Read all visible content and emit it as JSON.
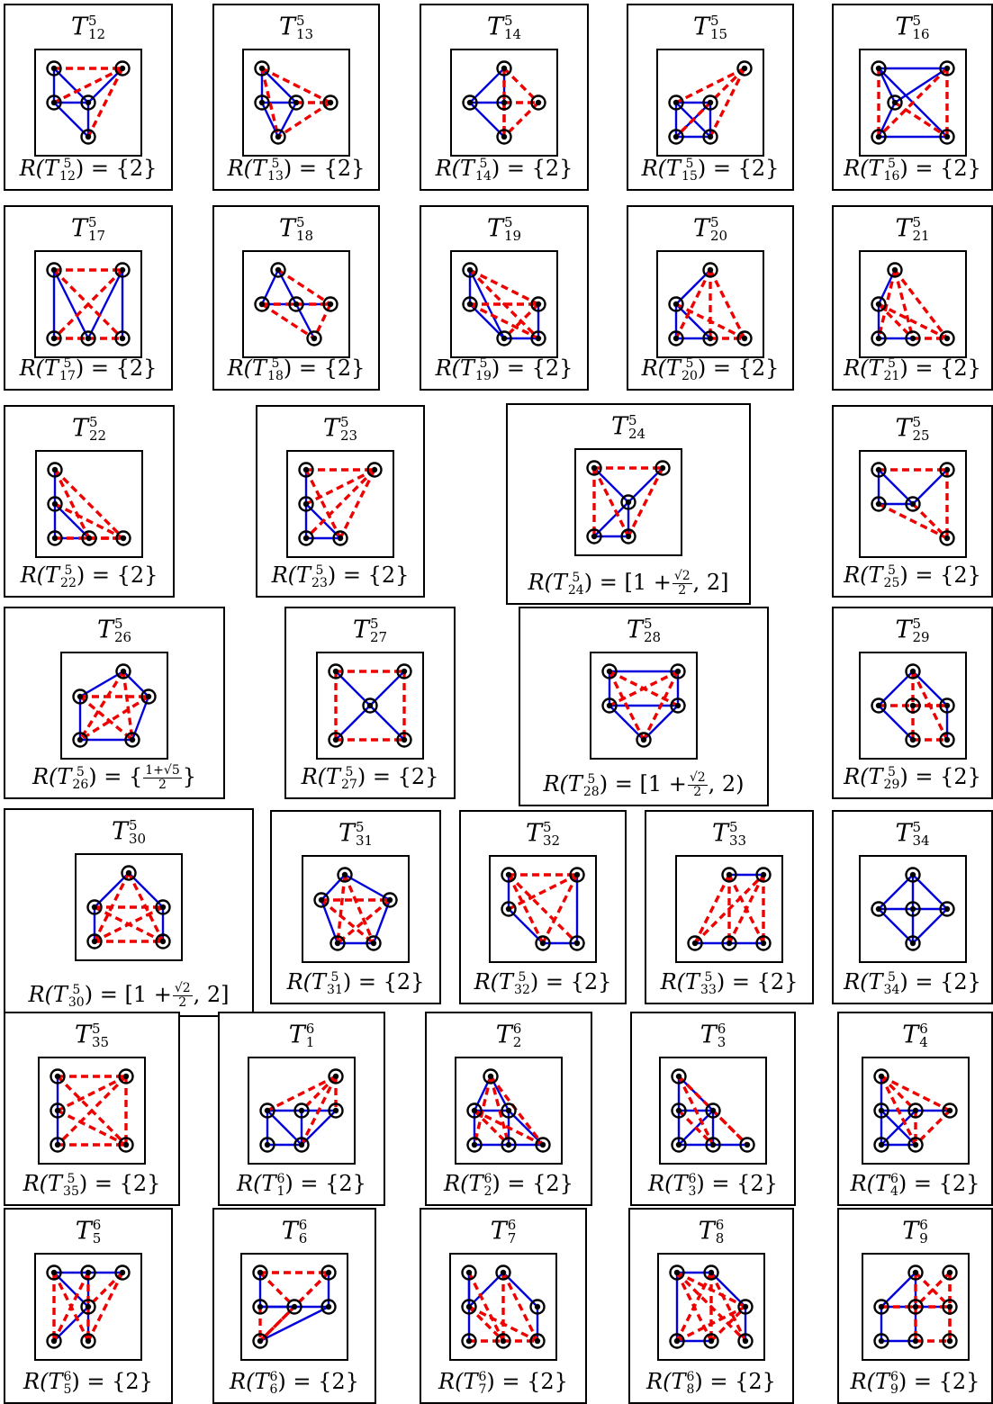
{
  "colors": {
    "solid_edge": "#0000dd",
    "dashed_edge": "#ee0000",
    "vertex": "#000000",
    "frame": "#000000"
  },
  "cells": [
    {
      "name": "T5-12",
      "tsup": "5",
      "tsub": "12",
      "rpre": "= {2}",
      "rval": null,
      "rsuf": ""
    },
    {
      "name": "T5-13",
      "tsup": "5",
      "tsub": "13",
      "rpre": "= {2}",
      "rval": null,
      "rsuf": ""
    },
    {
      "name": "T5-14",
      "tsup": "5",
      "tsub": "14",
      "rpre": "= {2}",
      "rval": null,
      "rsuf": ""
    },
    {
      "name": "T5-15",
      "tsup": "5",
      "tsub": "15",
      "rpre": "= {2}",
      "rval": null,
      "rsuf": ""
    },
    {
      "name": "T5-16",
      "tsup": "5",
      "tsub": "16",
      "rpre": "= {2}",
      "rval": null,
      "rsuf": ""
    },
    {
      "name": "T5-17",
      "tsup": "5",
      "tsub": "17",
      "rpre": "= {2}",
      "rval": null,
      "rsuf": ""
    },
    {
      "name": "T5-18",
      "tsup": "5",
      "tsub": "18",
      "rpre": "= {2}",
      "rval": null,
      "rsuf": ""
    },
    {
      "name": "T5-19",
      "tsup": "5",
      "tsub": "19",
      "rpre": "= {2}",
      "rval": null,
      "rsuf": ""
    },
    {
      "name": "T5-20",
      "tsup": "5",
      "tsub": "20",
      "rpre": "= {2}",
      "rval": null,
      "rsuf": ""
    },
    {
      "name": "T5-21",
      "tsup": "5",
      "tsub": "21",
      "rpre": "= {2}",
      "rval": null,
      "rsuf": ""
    },
    {
      "name": "T5-22",
      "tsup": "5",
      "tsub": "22",
      "rpre": "= {2}",
      "rval": null,
      "rsuf": ""
    },
    {
      "name": "T5-23",
      "tsup": "5",
      "tsub": "23",
      "rpre": "= {2}",
      "rval": null,
      "rsuf": ""
    },
    {
      "name": "T5-24",
      "tsup": "5",
      "tsub": "24",
      "rpre": "= [1 +",
      "rval": {
        "num": "√2",
        "den": "2"
      },
      "rsuf": ", 2]"
    },
    {
      "name": "T5-25",
      "tsup": "5",
      "tsub": "25",
      "rpre": "= {2}",
      "rval": null,
      "rsuf": ""
    },
    {
      "name": "T5-26",
      "tsup": "5",
      "tsub": "26",
      "rpre": "= {",
      "rval": {
        "num": "1+√5",
        "den": "2"
      },
      "rsuf": "}"
    },
    {
      "name": "T5-27",
      "tsup": "5",
      "tsub": "27",
      "rpre": "= {2}",
      "rval": null,
      "rsuf": ""
    },
    {
      "name": "T5-28",
      "tsup": "5",
      "tsub": "28",
      "rpre": "= [1 +",
      "rval": {
        "num": "√2",
        "den": "2"
      },
      "rsuf": ", 2)"
    },
    {
      "name": "T5-29",
      "tsup": "5",
      "tsub": "29",
      "rpre": "= {2}",
      "rval": null,
      "rsuf": ""
    },
    {
      "name": "T5-30",
      "tsup": "5",
      "tsub": "30",
      "rpre": "= [1 +",
      "rval": {
        "num": "√2",
        "den": "2"
      },
      "rsuf": ", 2]"
    },
    {
      "name": "T5-31",
      "tsup": "5",
      "tsub": "31",
      "rpre": "= {2}",
      "rval": null,
      "rsuf": ""
    },
    {
      "name": "T5-32",
      "tsup": "5",
      "tsub": "32",
      "rpre": "= {2}",
      "rval": null,
      "rsuf": ""
    },
    {
      "name": "T5-33",
      "tsup": "5",
      "tsub": "33",
      "rpre": "= {2}",
      "rval": null,
      "rsuf": ""
    },
    {
      "name": "T5-34",
      "tsup": "5",
      "tsub": "34",
      "rpre": "= {2}",
      "rval": null,
      "rsuf": ""
    },
    {
      "name": "T5-35",
      "tsup": "5",
      "tsub": "35",
      "rpre": "= {2}",
      "rval": null,
      "rsuf": ""
    },
    {
      "name": "T6-1",
      "tsup": "6",
      "tsub": "1",
      "rpre": "= {2}",
      "rval": null,
      "rsuf": ""
    },
    {
      "name": "T6-2",
      "tsup": "6",
      "tsub": "2",
      "rpre": "= {2}",
      "rval": null,
      "rsuf": ""
    },
    {
      "name": "T6-3",
      "tsup": "6",
      "tsub": "3",
      "rpre": "= {2}",
      "rval": null,
      "rsuf": ""
    },
    {
      "name": "T6-4",
      "tsup": "6",
      "tsub": "4",
      "rpre": "= {2}",
      "rval": null,
      "rsuf": ""
    },
    {
      "name": "T6-5",
      "tsup": "6",
      "tsub": "5",
      "rpre": "= {2}",
      "rval": null,
      "rsuf": ""
    },
    {
      "name": "T6-6",
      "tsup": "6",
      "tsub": "6",
      "rpre": "= {2}",
      "rval": null,
      "rsuf": ""
    },
    {
      "name": "T6-7",
      "tsup": "6",
      "tsub": "7",
      "rpre": "= {2}",
      "rval": null,
      "rsuf": ""
    },
    {
      "name": "T6-8",
      "tsup": "6",
      "tsub": "8",
      "rpre": "= {2}",
      "rval": null,
      "rsuf": ""
    },
    {
      "name": "T6-9",
      "tsup": "6",
      "tsub": "9",
      "rpre": "= {2}",
      "rval": null,
      "rsuf": ""
    }
  ]
}
